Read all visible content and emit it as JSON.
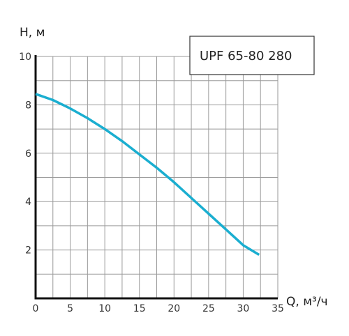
{
  "chart_data": {
    "type": "line",
    "title": "",
    "xlabel": "Q, м³/ч",
    "ylabel": "H, м",
    "xlim": [
      0,
      35
    ],
    "ylim": [
      0,
      10
    ],
    "x_ticks": [
      0,
      5,
      10,
      15,
      20,
      25,
      30,
      35
    ],
    "y_ticks": [
      2,
      4,
      6,
      8,
      10
    ],
    "grid": true,
    "legend_position": "top-right",
    "series": [
      {
        "name": "UPF 65-80 280",
        "color": "#1aaed0",
        "x": [
          0,
          2.5,
          5,
          7.5,
          10,
          12.5,
          15,
          17.5,
          20,
          22.5,
          25,
          27.5,
          30,
          32.3
        ],
        "y": [
          8.45,
          8.2,
          7.85,
          7.45,
          7.0,
          6.5,
          5.95,
          5.4,
          4.8,
          4.15,
          3.5,
          2.85,
          2.2,
          1.8
        ]
      }
    ]
  }
}
